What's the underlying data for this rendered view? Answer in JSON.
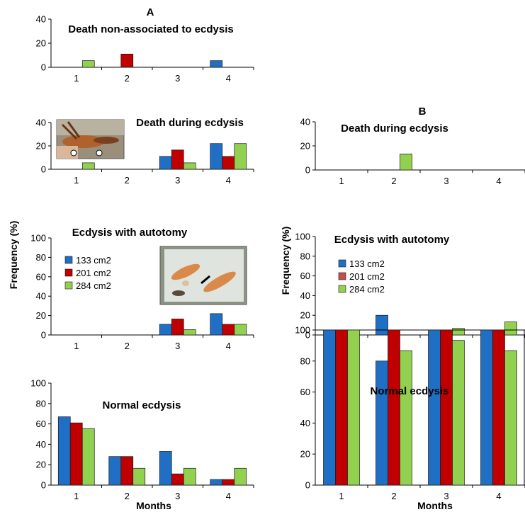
{
  "panel_labels": {
    "A": "A",
    "B": "B"
  },
  "y_axis_label": "Frequency (%)",
  "x_axis_label": "Months",
  "legend": {
    "items": [
      "133 cm2",
      "201 cm2",
      "284 cm2"
    ]
  },
  "colors": {
    "133 cm2": "#1f6fc5",
    "201 cm2": "#c00000",
    "284 cm2": "#92d050",
    "bar_edge": "#1a1a1a"
  },
  "photos": [
    "shrimp-molting-photo",
    "shrimp-autotomy-photo"
  ],
  "chart_data": [
    {
      "id": "A1",
      "type": "bar",
      "title": "Death non-associated to ecdysis",
      "categories": [
        "1",
        "2",
        "3",
        "4"
      ],
      "ylim": [
        0,
        40
      ],
      "yticks": [
        0,
        20,
        40
      ],
      "series": [
        {
          "name": "133 cm2",
          "values": [
            0,
            0,
            0,
            5.5
          ]
        },
        {
          "name": "201 cm2",
          "values": [
            0,
            11,
            0,
            0
          ]
        },
        {
          "name": "284 cm2",
          "values": [
            5.5,
            0,
            0,
            0
          ]
        }
      ]
    },
    {
      "id": "A2",
      "type": "bar",
      "title": "Death during ecdysis",
      "categories": [
        "1",
        "2",
        "3",
        "4"
      ],
      "ylim": [
        0,
        40
      ],
      "yticks": [
        0,
        20,
        40
      ],
      "series": [
        {
          "name": "133 cm2",
          "values": [
            0,
            0,
            11,
            22
          ]
        },
        {
          "name": "201 cm2",
          "values": [
            0,
            0,
            16.5,
            11
          ]
        },
        {
          "name": "284 cm2",
          "values": [
            5.5,
            0,
            5.5,
            22
          ]
        }
      ]
    },
    {
      "id": "A3",
      "type": "bar",
      "title": "Ecdysis with autotomy",
      "categories": [
        "1",
        "2",
        "3",
        "4"
      ],
      "ylim": [
        0,
        100
      ],
      "yticks": [
        0,
        20,
        40,
        60,
        80,
        100
      ],
      "series": [
        {
          "name": "133 cm2",
          "values": [
            0,
            0,
            11,
            22
          ]
        },
        {
          "name": "201 cm2",
          "values": [
            0,
            0,
            16.5,
            11
          ]
        },
        {
          "name": "284 cm2",
          "values": [
            0,
            0,
            5.5,
            11
          ]
        }
      ]
    },
    {
      "id": "A4",
      "type": "bar",
      "title": "Normal ecdysis",
      "categories": [
        "1",
        "2",
        "3",
        "4"
      ],
      "ylim": [
        0,
        100
      ],
      "yticks": [
        0,
        20,
        40,
        60,
        80,
        100
      ],
      "series": [
        {
          "name": "133 cm2",
          "values": [
            67,
            28,
            33,
            5.5
          ]
        },
        {
          "name": "201 cm2",
          "values": [
            61,
            28,
            11,
            5.5
          ]
        },
        {
          "name": "284 cm2",
          "values": [
            55.5,
            16.5,
            16.5,
            16.5
          ]
        }
      ]
    },
    {
      "id": "B1",
      "type": "bar",
      "title": "Death during ecdysis",
      "categories": [
        "1",
        "2",
        "3",
        "4"
      ],
      "ylim": [
        0,
        40
      ],
      "yticks": [
        0,
        20,
        40
      ],
      "series": [
        {
          "name": "133 cm2",
          "values": [
            0,
            0,
            0,
            0
          ]
        },
        {
          "name": "201 cm2",
          "values": [
            0,
            0,
            0,
            0
          ]
        },
        {
          "name": "284 cm2",
          "values": [
            0,
            13.3,
            0,
            0
          ]
        }
      ]
    },
    {
      "id": "B2",
      "type": "bar",
      "title": "Ecdysis with autotomy",
      "categories": [
        "1",
        "2",
        "3",
        "4"
      ],
      "ylim": [
        0,
        100
      ],
      "yticks": [
        0,
        20,
        40,
        60,
        80,
        100
      ],
      "series": [
        {
          "name": "133 cm2",
          "values": [
            0,
            20,
            0,
            0
          ]
        },
        {
          "name": "201 cm2",
          "values": [
            0,
            0,
            0,
            0
          ]
        },
        {
          "name": "284 cm2",
          "values": [
            0,
            0,
            6.7,
            13.3
          ]
        }
      ]
    },
    {
      "id": "B3",
      "type": "bar",
      "title": "Normal ecdysis",
      "categories": [
        "1",
        "2",
        "3",
        "4"
      ],
      "ylim": [
        0,
        100
      ],
      "yticks": [
        0,
        20,
        40,
        60,
        80,
        100
      ],
      "series": [
        {
          "name": "133 cm2",
          "values": [
            100,
            80,
            100,
            100
          ]
        },
        {
          "name": "201 cm2",
          "values": [
            100,
            100,
            100,
            100
          ]
        },
        {
          "name": "284 cm2",
          "values": [
            100,
            86.7,
            93.3,
            86.7
          ]
        }
      ]
    }
  ]
}
